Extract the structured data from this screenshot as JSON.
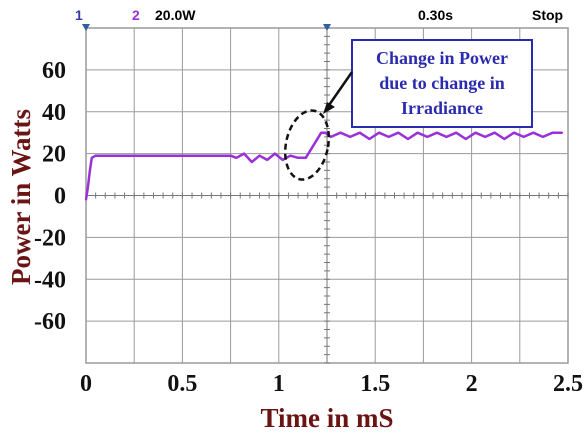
{
  "header": {
    "ch1": "1",
    "ch2": "2",
    "scale": "20.0W",
    "timebase": "0.30s",
    "status": "Stop"
  },
  "colors": {
    "trace": "#9b30d9",
    "grid": "#9a9a9a",
    "ch1": "#3a3ab0",
    "ch2": "#9b30d9",
    "annotation": "#2b2bb0",
    "axis_title": "#6b1414",
    "marker": "#2f5f9f"
  },
  "annotation": {
    "lines": [
      "Change in Power",
      "due to change in",
      "Irradiance"
    ]
  },
  "chart_data": {
    "type": "line",
    "title": "",
    "xlabel": "Time in mS",
    "ylabel": "Power in Watts",
    "xlim": [
      0,
      2.5
    ],
    "ylim": [
      -80,
      80
    ],
    "xticks": [
      "0",
      "0.5",
      "1",
      "1.5",
      "2",
      "2.5"
    ],
    "yticks": [
      "60",
      "40",
      "20",
      "0",
      "-20",
      "-40",
      "-60"
    ],
    "grid": true,
    "series": [
      {
        "x": [
          0.0,
          0.01,
          0.02,
          0.03,
          0.05,
          0.1,
          0.2,
          0.4,
          0.6,
          0.75,
          0.78,
          0.82,
          0.86,
          0.9,
          0.94,
          0.98,
          1.02,
          1.06,
          1.1,
          1.14,
          1.18,
          1.22,
          1.24,
          1.27,
          1.32,
          1.37,
          1.42,
          1.47,
          1.52,
          1.57,
          1.62,
          1.67,
          1.72,
          1.77,
          1.82,
          1.87,
          1.92,
          1.97,
          2.02,
          2.07,
          2.12,
          2.17,
          2.22,
          2.27,
          2.32,
          2.37,
          2.42,
          2.47
        ],
        "y": [
          -2,
          4,
          12,
          18,
          19,
          19,
          19,
          19,
          19,
          19,
          18,
          20,
          16,
          19,
          17,
          20,
          17,
          19,
          18,
          18,
          24,
          30,
          30,
          28,
          30,
          28,
          30,
          27,
          30,
          28,
          30,
          27,
          30,
          28,
          30,
          28,
          30,
          27,
          30,
          28,
          30,
          27,
          30,
          28,
          30,
          28,
          30,
          30
        ]
      }
    ]
  }
}
